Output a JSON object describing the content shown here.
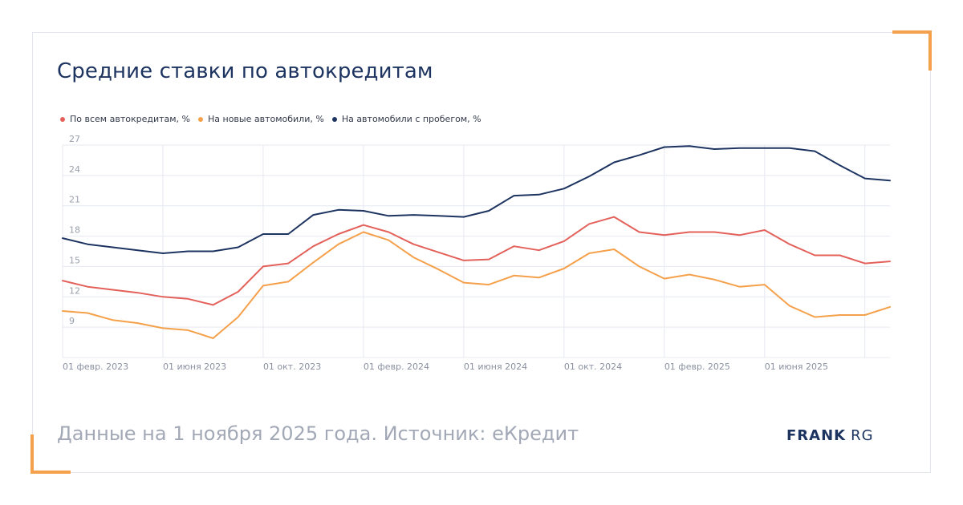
{
  "page": {
    "title": "Средние ставки по автокредитам",
    "footer": "Данные на 1 ноября 2025 года. Источник: еКредит",
    "logo": {
      "bold": "FRANK",
      "light": "RG"
    }
  },
  "chart_data": {
    "type": "line",
    "title": "Средние ставки по автокредитам",
    "xlabel": "",
    "ylabel": "",
    "x": [
      "2023-02",
      "2023-03",
      "2023-04",
      "2023-05",
      "2023-06",
      "2023-07",
      "2023-08",
      "2023-09",
      "2023-10",
      "2023-11",
      "2023-12",
      "2024-01",
      "2024-02",
      "2024-03",
      "2024-04",
      "2024-05",
      "2024-06",
      "2024-07",
      "2024-08",
      "2024-09",
      "2024-10",
      "2024-11",
      "2024-12",
      "2025-01",
      "2025-02",
      "2025-03",
      "2025-04",
      "2025-05",
      "2025-06",
      "2025-07",
      "2025-08",
      "2025-09",
      "2025-10",
      "2025-11"
    ],
    "x_tick_labels": [
      {
        "x": "2023-02",
        "label": "01 февр. 2023"
      },
      {
        "x": "2023-06",
        "label": "01 июня 2023"
      },
      {
        "x": "2023-10",
        "label": "01 окт. 2023"
      },
      {
        "x": "2024-02",
        "label": "01 февр. 2024"
      },
      {
        "x": "2024-06",
        "label": "01 июня 2024"
      },
      {
        "x": "2024-10",
        "label": "01 окт. 2024"
      },
      {
        "x": "2025-02",
        "label": "01 февр. 2025"
      },
      {
        "x": "2025-06",
        "label": "01 июня 2025"
      },
      {
        "x": "2025-10",
        "label": ""
      }
    ],
    "y_ticks": [
      9,
      12,
      15,
      18,
      21,
      24,
      27
    ],
    "ylim": [
      6,
      27
    ],
    "grid": true,
    "legend_position": "top-left",
    "series": [
      {
        "name": "По всем автокредитам, %",
        "color": "#e3615a",
        "values": [
          13.6,
          13.0,
          12.7,
          12.4,
          12.0,
          11.8,
          11.2,
          12.5,
          15.0,
          15.3,
          17.0,
          18.2,
          19.1,
          18.4,
          17.2,
          16.4,
          15.6,
          15.7,
          17.0,
          16.6,
          17.5,
          19.2,
          19.9,
          18.4,
          18.1,
          18.4,
          18.4,
          18.1,
          18.6,
          17.2,
          16.1,
          16.1,
          15.3,
          15.5
        ]
      },
      {
        "name": "На новые автомобили, %",
        "color": "#f5a04a",
        "values": [
          10.6,
          10.4,
          9.7,
          9.4,
          8.9,
          8.7,
          7.9,
          10.0,
          13.1,
          13.5,
          15.4,
          17.2,
          18.4,
          17.6,
          15.9,
          14.7,
          13.4,
          13.2,
          14.1,
          13.9,
          14.8,
          16.3,
          16.7,
          15.0,
          13.8,
          14.2,
          13.7,
          13.0,
          13.2,
          11.1,
          10.0,
          10.2,
          10.2,
          11.0
        ]
      },
      {
        "name": "На автомобили с пробегом, %",
        "color": "#1d3461",
        "values": [
          17.8,
          17.2,
          16.9,
          16.6,
          16.3,
          16.5,
          16.5,
          16.9,
          18.2,
          18.2,
          20.1,
          20.6,
          20.5,
          20.0,
          20.1,
          20.0,
          19.9,
          20.5,
          22.0,
          22.1,
          22.7,
          23.9,
          25.3,
          26.0,
          26.8,
          26.9,
          26.6,
          26.7,
          26.7,
          26.7,
          26.4,
          25.0,
          23.7,
          23.5
        ]
      }
    ]
  }
}
